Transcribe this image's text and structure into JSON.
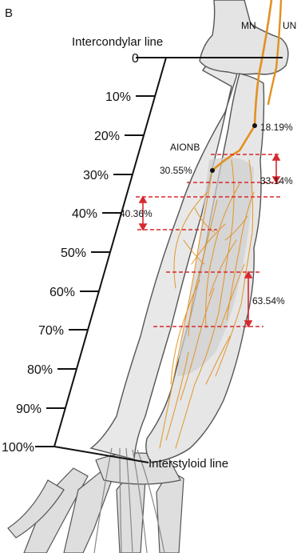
{
  "figure": {
    "panel_label": "B",
    "nerves": {
      "mn": "MN",
      "un": "UN"
    },
    "reference_lines": {
      "top": "Intercondylar line",
      "bottom": "Interstyloid line"
    },
    "scale_ticks": [
      "0",
      "10%",
      "20%",
      "30%",
      "40%",
      "50%",
      "60%",
      "70%",
      "80%",
      "90%",
      "100%"
    ],
    "branch_label": "AIONB",
    "annotations": {
      "point_a": "18.19%",
      "point_b": "30.55%",
      "span_a": "33.14%",
      "span_b": "40.36%",
      "span_c": "63.54%"
    },
    "colors": {
      "nerve": "#e3901f",
      "measure_line": "#d6282f",
      "bone_fill": "#e6e6e6",
      "bone_outline": "#555555"
    }
  }
}
